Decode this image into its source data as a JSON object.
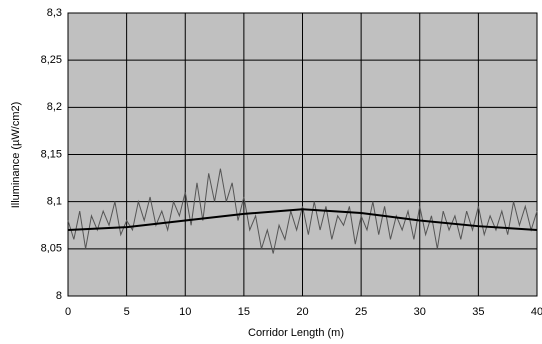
{
  "chart_data": {
    "type": "line",
    "xlabel": "Corridor Length (m)",
    "ylabel": "Illuminance (µW/cm2)",
    "xlim": [
      0,
      40
    ],
    "xticks": [
      0,
      5,
      10,
      15,
      20,
      25,
      30,
      35,
      40
    ],
    "ylim": [
      8,
      8.3
    ],
    "yticks": [
      8,
      {
        "value": 8.05,
        "label": "8,05"
      },
      {
        "value": 8.1,
        "label": "8,1"
      },
      {
        "value": 8.15,
        "label": "8,15"
      },
      {
        "value": 8.2,
        "label": "8,2"
      },
      {
        "value": 8.25,
        "label": "8,25"
      },
      {
        "value": 8.3,
        "label": "8,3"
      }
    ],
    "grid": true,
    "background": "#c0c0c0",
    "series": [
      {
        "color": "#555555",
        "x": [
          0,
          0.5,
          1,
          1.5,
          2,
          2.5,
          3,
          3.5,
          4,
          4.5,
          5,
          5.5,
          6,
          6.5,
          7,
          7.5,
          8,
          8.5,
          9,
          9.5,
          10,
          10.5,
          11,
          11.5,
          12,
          12.5,
          13,
          13.5,
          14,
          14.5,
          15,
          15.5,
          16,
          16.5,
          17,
          17.5,
          18,
          18.5,
          19,
          19.5,
          20,
          20.5,
          21,
          21.5,
          22,
          22.5,
          23,
          23.5,
          24,
          24.5,
          25,
          25.5,
          26,
          26.5,
          27,
          27.5,
          28,
          28.5,
          29,
          29.5,
          30,
          30.5,
          31,
          31.5,
          32,
          32.5,
          33,
          33.5,
          34,
          34.5,
          35,
          35.5,
          36,
          36.5,
          37,
          37.5,
          38,
          38.5,
          39,
          39.5,
          40
        ],
        "values": [
          8.08,
          8.06,
          8.09,
          8.05,
          8.085,
          8.07,
          8.09,
          8.075,
          8.1,
          8.065,
          8.08,
          8.07,
          8.1,
          8.08,
          8.105,
          8.075,
          8.09,
          8.07,
          8.1,
          8.085,
          8.11,
          8.075,
          8.12,
          8.08,
          8.13,
          8.1,
          8.135,
          8.1,
          8.12,
          8.08,
          8.105,
          8.07,
          8.085,
          8.05,
          8.07,
          8.045,
          8.075,
          8.06,
          8.09,
          8.07,
          8.095,
          8.065,
          8.1,
          8.07,
          8.095,
          8.06,
          8.085,
          8.075,
          8.095,
          8.055,
          8.085,
          8.07,
          8.1,
          8.065,
          8.095,
          8.06,
          8.085,
          8.07,
          8.09,
          8.06,
          8.095,
          8.065,
          8.085,
          8.05,
          8.09,
          8.07,
          8.085,
          8.06,
          8.09,
          8.07,
          8.095,
          8.065,
          8.085,
          8.07,
          8.09,
          8.065,
          8.1,
          8.075,
          8.095,
          8.07,
          8.09
        ]
      },
      {
        "color": "#000000",
        "x": [
          0,
          5,
          10,
          15,
          20,
          25,
          30,
          35,
          40
        ],
        "values": [
          8.07,
          8.073,
          8.08,
          8.087,
          8.092,
          8.088,
          8.08,
          8.074,
          8.07
        ]
      }
    ]
  }
}
